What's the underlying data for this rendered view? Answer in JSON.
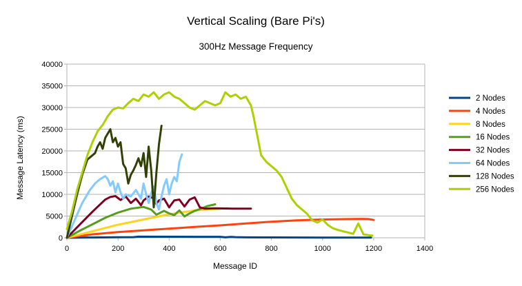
{
  "chart_data": {
    "type": "line",
    "title": "Vertical Scaling (Bare Pi's)",
    "subtitle": "300Hz Message Frequency",
    "xlabel": "Message ID",
    "ylabel": "Message Latency (ms)",
    "xlim": [
      0,
      1400
    ],
    "ylim": [
      0,
      40000
    ],
    "xticks": [
      0,
      200,
      400,
      600,
      800,
      1000,
      1200,
      1400
    ],
    "yticks": [
      0,
      5000,
      10000,
      15000,
      20000,
      25000,
      30000,
      35000,
      40000
    ],
    "grid": true,
    "legend_position": "right",
    "series": [
      {
        "name": "2 Nodes",
        "color": "#004586",
        "x": [
          0,
          100,
          200,
          260,
          280,
          400,
          500,
          600,
          620,
          640,
          660,
          700,
          800,
          900,
          1000,
          1100,
          1190
        ],
        "y": [
          0,
          60,
          120,
          150,
          250,
          240,
          230,
          220,
          100,
          200,
          150,
          100,
          80,
          60,
          50,
          40,
          30
        ]
      },
      {
        "name": "4 Nodes",
        "color": "#ff420e",
        "x": [
          0,
          50,
          100,
          200,
          300,
          400,
          500,
          600,
          700,
          800,
          900,
          1000,
          1100,
          1150,
          1180,
          1200
        ],
        "y": [
          0,
          400,
          800,
          1300,
          1700,
          2100,
          2500,
          2850,
          3300,
          3700,
          4000,
          4200,
          4300,
          4350,
          4300,
          4100
        ]
      },
      {
        "name": "8 Nodes",
        "color": "#ffd320",
        "x": [
          0,
          100,
          200,
          300,
          400,
          500,
          550,
          600,
          630
        ],
        "y": [
          0,
          1500,
          3000,
          4200,
          5400,
          6300,
          6500,
          6700,
          6800
        ]
      },
      {
        "name": "16 Nodes",
        "color": "#579d1c",
        "x": [
          0,
          50,
          100,
          150,
          200,
          250,
          300,
          330,
          350,
          380,
          400,
          420,
          440,
          460,
          480,
          500,
          520,
          550,
          580
        ],
        "y": [
          0,
          1600,
          3100,
          4600,
          5800,
          6700,
          7100,
          6500,
          5300,
          6200,
          5600,
          5200,
          6300,
          4900,
          5600,
          6200,
          6600,
          7300,
          7700
        ]
      },
      {
        "name": "32 Nodes",
        "color": "#7e0021",
        "x": [
          0,
          50,
          100,
          150,
          170,
          190,
          210,
          230,
          250,
          270,
          290,
          300,
          320,
          340,
          350,
          360,
          380,
          400,
          420,
          440,
          460,
          480,
          500,
          520,
          540,
          580,
          650,
          720
        ],
        "y": [
          0,
          3000,
          6000,
          8800,
          9400,
          9600,
          8700,
          9500,
          8000,
          9000,
          7500,
          8600,
          9500,
          9100,
          7800,
          8600,
          9000,
          7000,
          8600,
          8800,
          7200,
          8800,
          9300,
          7000,
          6700,
          6800,
          6700,
          6700
        ]
      },
      {
        "name": "64 Nodes",
        "color": "#83caff",
        "x": [
          0,
          30,
          60,
          90,
          110,
          130,
          150,
          160,
          170,
          180,
          190,
          200,
          210,
          220,
          230,
          250,
          270,
          290,
          300,
          310,
          320,
          330,
          340,
          350,
          360,
          370,
          380,
          390,
          400,
          410,
          420,
          430,
          440,
          450
        ],
        "y": [
          0,
          4000,
          8000,
          11000,
          12500,
          13500,
          14200,
          13500,
          12000,
          13000,
          10500,
          12500,
          10500,
          9000,
          10000,
          9500,
          11000,
          9000,
          12500,
          10000,
          8000,
          10200,
          11800,
          8000,
          6500,
          9500,
          12000,
          13500,
          10000,
          12500,
          14000,
          13000,
          17500,
          19200
        ]
      },
      {
        "name": "128 Nodes",
        "color": "#314004",
        "x": [
          0,
          20,
          40,
          60,
          80,
          100,
          110,
          120,
          130,
          140,
          150,
          160,
          170,
          180,
          190,
          200,
          210,
          220,
          230,
          240,
          250,
          260,
          270,
          280,
          290,
          300,
          310,
          320,
          330,
          340,
          350,
          360,
          370
        ],
        "y": [
          0,
          5000,
          10000,
          14500,
          18000,
          19000,
          19500,
          21000,
          22000,
          20500,
          23000,
          24000,
          25000,
          22000,
          23000,
          21000,
          22000,
          17000,
          16000,
          12500,
          14500,
          15500,
          16800,
          18300,
          16500,
          19500,
          14000,
          21000,
          15500,
          7000,
          15000,
          21500,
          25800
        ]
      },
      {
        "name": "256 Nodes",
        "color": "#aecf00",
        "x": [
          0,
          20,
          40,
          60,
          80,
          100,
          120,
          140,
          160,
          180,
          200,
          220,
          240,
          260,
          280,
          300,
          320,
          340,
          360,
          380,
          400,
          420,
          440,
          460,
          480,
          500,
          520,
          540,
          560,
          580,
          600,
          620,
          640,
          660,
          680,
          700,
          720,
          730,
          740,
          760,
          780,
          800,
          820,
          840,
          860,
          880,
          900,
          920,
          940,
          960,
          980,
          1000,
          1020,
          1040,
          1060,
          1080,
          1100,
          1120,
          1140,
          1160,
          1180,
          1195
        ],
        "y": [
          2000,
          6000,
          11000,
          15000,
          19000,
          22000,
          24500,
          26000,
          28000,
          29500,
          30000,
          29800,
          31000,
          32000,
          31500,
          33000,
          32500,
          33500,
          32000,
          33000,
          33500,
          32500,
          32000,
          31000,
          30000,
          29500,
          30500,
          31500,
          31000,
          30500,
          31000,
          33500,
          32500,
          33000,
          32000,
          32500,
          30500,
          28000,
          25000,
          19000,
          17500,
          16500,
          15500,
          14000,
          11500,
          9000,
          7500,
          6500,
          5500,
          4000,
          3500,
          4200,
          3000,
          2200,
          1800,
          1500,
          1200,
          900,
          3300,
          800,
          600,
          500
        ]
      }
    ]
  }
}
